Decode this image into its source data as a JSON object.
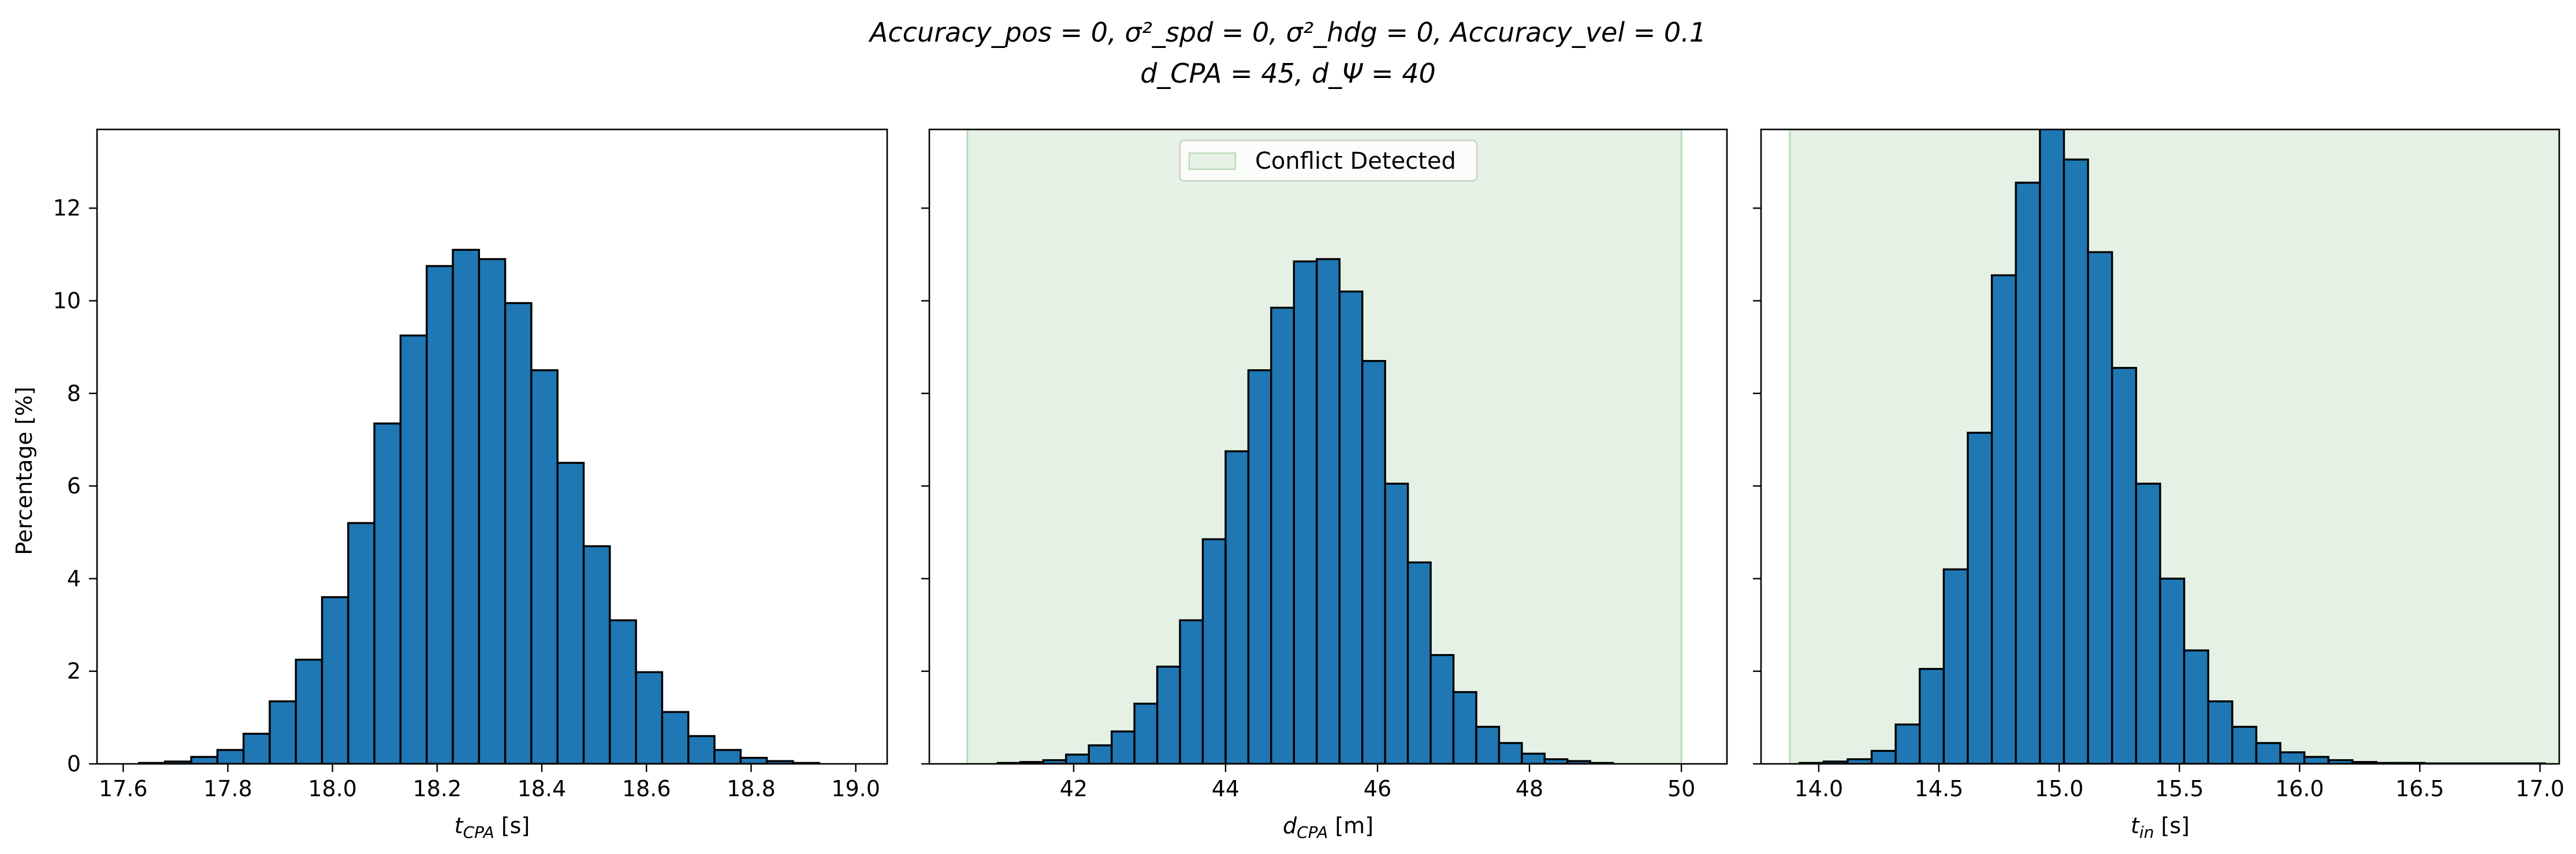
{
  "figure": {
    "title_line1": "Accuracy_pos = 0, σ²_spd = 0, σ²_hdg = 0, Accuracy_vel = 0.1",
    "title_line2": "d_CPA = 45, d_Ψ = 40"
  },
  "colors": {
    "bar_fill": "#1f77b4",
    "bar_edge": "#000000",
    "conflict_shade": "#e4f1e4",
    "conflict_edge": "#b9dcb9"
  },
  "chart_data": [
    {
      "type": "bar",
      "panel": "left",
      "xlabel": "t_CPA [s]",
      "ylabel": "Percentage [%]",
      "xlim": [
        17.55,
        19.06
      ],
      "ylim": [
        0,
        13.7
      ],
      "xticks": [
        "17.6",
        "17.8",
        "18.0",
        "18.2",
        "18.4",
        "18.6",
        "18.8",
        "19.0"
      ],
      "yticks": [
        "0",
        "2",
        "4",
        "6",
        "8",
        "10",
        "12"
      ],
      "bin_edges": [
        17.63,
        17.68,
        17.73,
        17.78,
        17.83,
        17.88,
        17.93,
        17.98,
        18.03,
        18.08,
        18.13,
        18.18,
        18.23,
        18.28,
        18.33,
        18.38,
        18.43,
        18.48,
        18.53,
        18.58,
        18.63,
        18.68,
        18.73,
        18.78,
        18.83,
        18.88,
        18.93
      ],
      "values": [
        0.02,
        0.05,
        0.15,
        0.3,
        0.65,
        1.35,
        2.25,
        3.6,
        5.2,
        7.35,
        9.25,
        10.75,
        11.1,
        10.9,
        9.95,
        8.5,
        6.5,
        4.7,
        3.1,
        1.98,
        1.12,
        0.6,
        0.3,
        0.13,
        0.06,
        0.02
      ],
      "shaded_region": null,
      "legend": null
    },
    {
      "type": "bar",
      "panel": "middle",
      "xlabel": "d_CPA [m]",
      "xlim": [
        40.1,
        50.6
      ],
      "ylim": [
        0,
        13.7
      ],
      "xticks": [
        "42",
        "44",
        "46",
        "48",
        "50"
      ],
      "bin_edges": [
        41.0,
        41.3,
        41.6,
        41.9,
        42.2,
        42.5,
        42.8,
        43.1,
        43.4,
        43.7,
        44.0,
        44.3,
        44.6,
        44.9,
        45.2,
        45.5,
        45.8,
        46.1,
        46.4,
        46.7,
        47.0,
        47.3,
        47.6,
        47.9,
        48.2,
        48.5,
        48.8,
        49.1
      ],
      "values": [
        0.02,
        0.04,
        0.08,
        0.2,
        0.4,
        0.7,
        1.3,
        2.1,
        3.1,
        4.85,
        6.75,
        8.5,
        9.85,
        10.85,
        10.9,
        10.2,
        8.7,
        6.05,
        4.35,
        2.35,
        1.55,
        0.8,
        0.45,
        0.22,
        0.1,
        0.06,
        0.02
      ],
      "shaded_region": [
        40.6,
        50.0
      ],
      "legend": {
        "label": "Conflict Detected",
        "placement": "upper-center"
      }
    },
    {
      "type": "bar",
      "panel": "right",
      "xlabel": "t_in [s]",
      "xlim": [
        13.76,
        17.08
      ],
      "ylim": [
        0,
        13.7
      ],
      "xticks": [
        "14.0",
        "14.5",
        "15.0",
        "15.5",
        "16.0",
        "16.5",
        "17.0"
      ],
      "bin_edges": [
        13.92,
        14.02,
        14.12,
        14.22,
        14.32,
        14.42,
        14.52,
        14.62,
        14.72,
        14.82,
        14.92,
        15.02,
        15.12,
        15.22,
        15.32,
        15.42,
        15.52,
        15.62,
        15.72,
        15.82,
        15.92,
        16.02,
        16.12,
        16.22,
        16.32,
        16.42,
        16.52,
        16.62,
        16.72,
        16.82,
        16.92,
        17.02
      ],
      "values": [
        0.02,
        0.05,
        0.1,
        0.28,
        0.85,
        2.05,
        4.2,
        7.15,
        10.55,
        12.55,
        13.75,
        13.05,
        11.05,
        8.55,
        6.05,
        4.0,
        2.45,
        1.35,
        0.8,
        0.45,
        0.25,
        0.15,
        0.08,
        0.04,
        0.02,
        0.02,
        0.01,
        0.01,
        0.01,
        0.01,
        0.01
      ],
      "shaded_region": [
        13.88,
        17.08
      ],
      "legend": null
    }
  ]
}
